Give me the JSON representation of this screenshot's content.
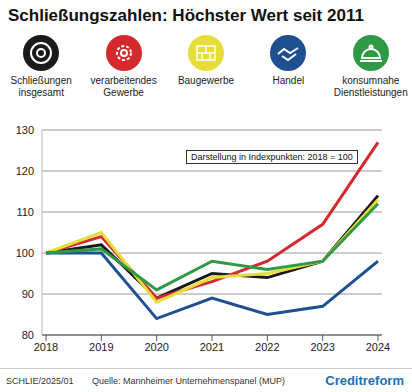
{
  "chart_data": {
    "type": "line",
    "title": "Schließungszahlen: Höchster Wert seit 2011",
    "annotations": [
      "Darstellung in Indexpunkten: 2018 = 100"
    ],
    "notes": [
      "SCHLIE/2025/01"
    ],
    "source": "Quelle: Mannheimer Unternehmenspanel (MUP)",
    "logo": "Creditreform",
    "categories": [
      "2018",
      "2019",
      "2020",
      "2021",
      "2022",
      "2023",
      "2024"
    ],
    "series": [
      {
        "name": "Schließungen insgesamt",
        "color": "#1a1a1a",
        "values": [
          100,
          102,
          89,
          95,
          94,
          98,
          114
        ]
      },
      {
        "name": "verarbeitendes Gewerbe",
        "color": "#d42a2e",
        "values": [
          100,
          104,
          89,
          93,
          98,
          107,
          127
        ]
      },
      {
        "name": "Baugewerbe",
        "color": "#e6dc3a",
        "values": [
          100,
          105,
          88,
          94,
          95,
          98,
          113
        ]
      },
      {
        "name": "Handel",
        "color": "#1d4f91",
        "values": [
          100,
          100,
          84,
          89,
          85,
          87,
          98
        ]
      },
      {
        "name": "konsumnahe Dienstleistungen",
        "color": "#2e9a46",
        "values": [
          100,
          101,
          91,
          98,
          96,
          98,
          112
        ]
      }
    ],
    "ylim": [
      80,
      130
    ],
    "yticks": [
      80,
      90,
      100,
      110,
      120,
      130
    ],
    "grid": true,
    "legend": "top"
  }
}
